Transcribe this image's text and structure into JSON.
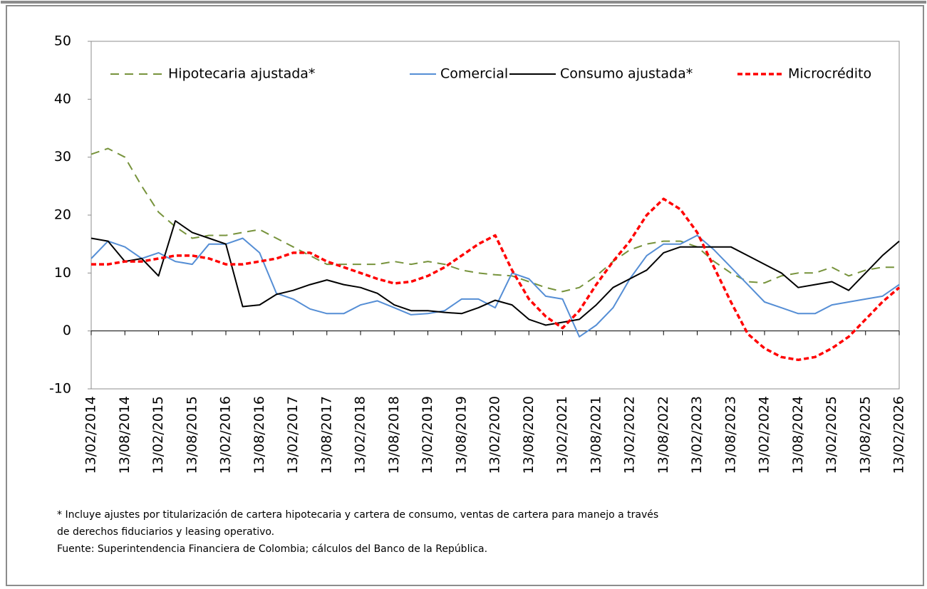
{
  "chart_data": {
    "type": "line",
    "categories": [
      "13/02/2014",
      null,
      "13/08/2014",
      null,
      "13/02/2015",
      null,
      "13/08/2015",
      null,
      "13/02/2016",
      null,
      "13/08/2016",
      null,
      "13/02/2017",
      null,
      "13/08/2017",
      null,
      "13/02/2018",
      null,
      "13/08/2018",
      null,
      "13/02/2019",
      null,
      "13/08/2019",
      null,
      "13/02/2020",
      null,
      "13/08/2020",
      null,
      "13/02/2021",
      null,
      "13/08/2021",
      null,
      "13/02/2022",
      null,
      "13/08/2022",
      null,
      "13/02/2023",
      null,
      "13/08/2023",
      null,
      "13/02/2024",
      null,
      "13/08/2024",
      null,
      "13/02/2025",
      null,
      "13/08/2025",
      null,
      "13/02/2026"
    ],
    "series": [
      {
        "name": "Hipotecaria ajustada*",
        "color": "#77933c",
        "dash": "12,8",
        "width": 2,
        "values": [
          30.5,
          31.5,
          30,
          25,
          20.5,
          18,
          16,
          16.5,
          16.5,
          17,
          17.5,
          16,
          14.5,
          13,
          11.5,
          11.5,
          11.5,
          11.5,
          12,
          11.5,
          12,
          11.5,
          10.5,
          10,
          9.7,
          9.5,
          8.5,
          7.5,
          6.8,
          7.5,
          9.5,
          12,
          14,
          15,
          15.5,
          15.5,
          14.5,
          12,
          10,
          8.5,
          8.3,
          9.5,
          10,
          10,
          11,
          9.5,
          10.5,
          11,
          11
        ]
      },
      {
        "name": "Comercial",
        "color": "#558ed5",
        "dash": "none",
        "width": 2,
        "values": [
          12.5,
          15.5,
          14.5,
          12.5,
          13.5,
          12,
          11.5,
          15,
          15,
          16,
          13.5,
          6.5,
          5.5,
          3.8,
          3,
          3,
          4.5,
          5.2,
          4,
          2.8,
          3,
          3.5,
          5.5,
          5.5,
          4,
          10,
          9,
          6,
          5.5,
          -1,
          1,
          4,
          9,
          13,
          15,
          15,
          16.5,
          14,
          11,
          8,
          5,
          4,
          3,
          3,
          4.5,
          5,
          5.5,
          6,
          8
        ]
      },
      {
        "name": "Consumo ajustada*",
        "color": "#000000",
        "dash": "none",
        "width": 2,
        "values": [
          16,
          15.5,
          12,
          12.5,
          9.5,
          19,
          17,
          16,
          15,
          4.2,
          4.5,
          6.3,
          7,
          8,
          8.8,
          8,
          7.5,
          6.5,
          4.5,
          3.5,
          3.5,
          3.2,
          3,
          4,
          5.3,
          4.5,
          2,
          1,
          1.5,
          2,
          4.5,
          7.5,
          9,
          10.5,
          13.5,
          14.5,
          14.5,
          14.5,
          14.5,
          13,
          11.5,
          10,
          7.5,
          8,
          8.5,
          7,
          10,
          13,
          15.5
        ]
      },
      {
        "name": "Microcrédito",
        "color": "#ff0000",
        "dash": "7,4",
        "width": 3.5,
        "values": [
          11.5,
          11.5,
          12,
          12,
          12.5,
          13,
          13,
          12.5,
          11.5,
          11.5,
          12,
          12.5,
          13.5,
          13.5,
          12,
          11,
          10,
          9,
          8.2,
          8.5,
          9.5,
          11,
          13,
          15,
          16.5,
          10.5,
          5.5,
          2.5,
          0.5,
          3.5,
          8,
          12,
          15.5,
          20,
          22.8,
          21,
          17,
          11,
          5,
          -0.5,
          -3,
          -4.5,
          -5,
          -4.5,
          -3,
          -1,
          2,
          5,
          7.5
        ]
      }
    ],
    "ylim": [
      -10,
      50
    ],
    "yticks": [
      -10,
      0,
      10,
      20,
      30,
      40,
      50
    ],
    "grid": false,
    "legend": "top",
    "notes": [
      "* Incluye ajustes por titularización de cartera hipotecaria y cartera de consumo, ventas de cartera para manejo a través",
      "de derechos fiduciarios y leasing operativo.",
      "Fuente: Superintendencia Financiera de Colombia; cálculos del Banco de la República."
    ]
  }
}
